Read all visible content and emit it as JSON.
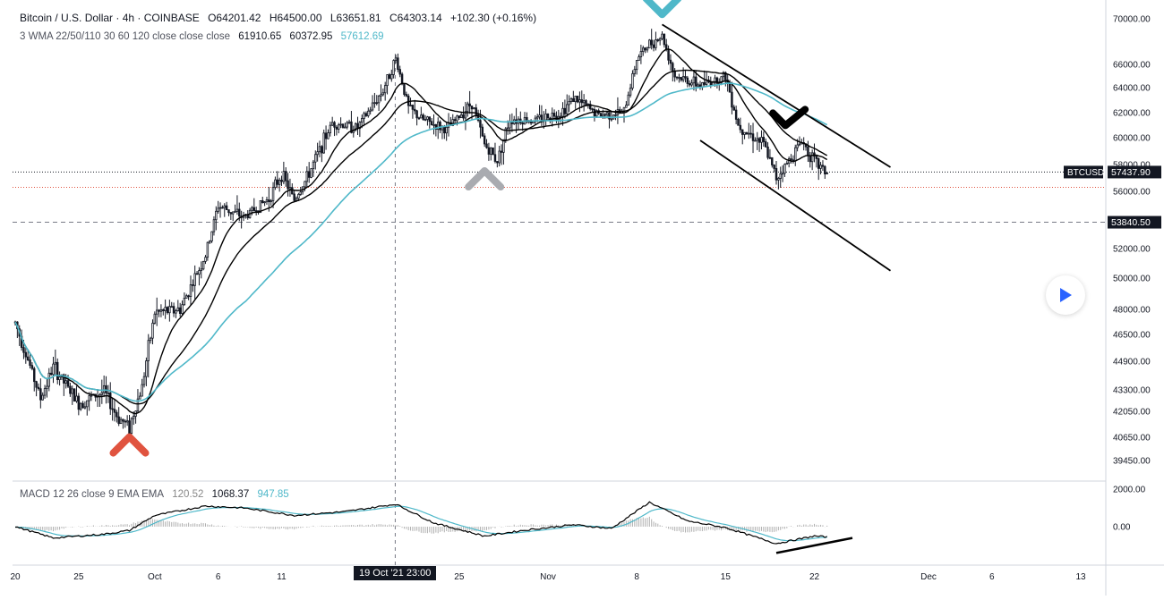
{
  "header": {
    "symbol_title": "Bitcoin / U.S. Dollar · 4h · COINBASE",
    "ohlc": {
      "o": "O64201.42",
      "h": "H64500.00",
      "l": "L63651.81",
      "c": "C64303.14",
      "change": "+102.30 (+0.16%)"
    }
  },
  "indicator_legend": {
    "label": "3 WMA 22/50/110 30 60 120 close close close",
    "v1": "61910.65",
    "v2": "60372.95",
    "v3": "57612.69"
  },
  "macd_legend": {
    "label": "MACD 12 26 close 9 EMA EMA",
    "v1": "120.52",
    "v2": "1068.37",
    "v3": "947.85"
  },
  "price_axis_labels": [
    "70000.00",
    "66000.00",
    "64000.00",
    "62000.00",
    "60000.00",
    "58000.00",
    "56000.00",
    "52000.00",
    "50000.00",
    "48000.00",
    "46500.00",
    "44900.00",
    "43300.00",
    "42050.00",
    "40650.00",
    "39450.00"
  ],
  "macd_axis_labels": [
    "2000.00",
    "0.00"
  ],
  "badges": {
    "symbol": "BTCUSD",
    "last_price": "57437.90",
    "crosshair_price": "53840.50",
    "crosshair_time": "19 Oct '21  23:00"
  },
  "time_axis_labels": [
    "20",
    "25",
    "Oct",
    "6",
    "11",
    "25",
    "Nov",
    "8",
    "15",
    "22",
    "Dec",
    "6",
    "13"
  ],
  "colors": {
    "up": "#131722",
    "down": "#131722",
    "wma_fast": "#000000",
    "wma_mid": "#000000",
    "wma_slow": "#4fb8c9",
    "macd_line": "#000000",
    "signal_line": "#4fb8c9",
    "hist": "#b0b0b0",
    "marker_red": "#e0533f",
    "marker_grey": "#a9abb0",
    "marker_teal": "#4fb8c9",
    "marker_black": "#000000",
    "grid": "#e6e8ee",
    "last_price_line": "#e0533f"
  },
  "chart_data": {
    "type": "candlestick",
    "symbol": "BTCUSD",
    "exchange": "COINBASE",
    "interval": "4h",
    "ylim": [
      39000,
      71000
    ],
    "x_range": [
      "2021-09-20",
      "2021-12-13"
    ],
    "price_path": [
      [
        "2021-09-20",
        47200
      ],
      [
        "2021-09-22",
        42800
      ],
      [
        "2021-09-23",
        44600
      ],
      [
        "2021-09-25",
        42500
      ],
      [
        "2021-09-27",
        43200
      ],
      [
        "2021-09-28",
        41800
      ],
      [
        "2021-09-29",
        41200
      ],
      [
        "2021-09-30",
        43500
      ],
      [
        "2021-10-01",
        47800
      ],
      [
        "2021-10-03",
        48000
      ],
      [
        "2021-10-05",
        51500
      ],
      [
        "2021-10-06",
        55000
      ],
      [
        "2021-10-08",
        54200
      ],
      [
        "2021-10-10",
        55500
      ],
      [
        "2021-10-11",
        57300
      ],
      [
        "2021-10-12",
        55400
      ],
      [
        "2021-10-13",
        57000
      ],
      [
        "2021-10-15",
        61200
      ],
      [
        "2021-10-17",
        60800
      ],
      [
        "2021-10-19",
        63800
      ],
      [
        "2021-10-20",
        66500
      ],
      [
        "2021-10-21",
        62400
      ],
      [
        "2021-10-22",
        61500
      ],
      [
        "2021-10-24",
        60600
      ],
      [
        "2021-10-26",
        62800
      ],
      [
        "2021-10-27",
        59500
      ],
      [
        "2021-10-28",
        58300
      ],
      [
        "2021-10-29",
        61500
      ],
      [
        "2021-10-31",
        61400
      ],
      [
        "2021-11-02",
        62000
      ],
      [
        "2021-11-03",
        63200
      ],
      [
        "2021-11-05",
        61800
      ],
      [
        "2021-11-07",
        62000
      ],
      [
        "2021-11-08",
        66500
      ],
      [
        "2021-11-09",
        67800
      ],
      [
        "2021-11-10",
        68500
      ],
      [
        "2021-11-11",
        65000
      ],
      [
        "2021-11-13",
        64200
      ],
      [
        "2021-11-15",
        65000
      ],
      [
        "2021-11-16",
        61000
      ],
      [
        "2021-11-18",
        59500
      ],
      [
        "2021-11-19",
        57000
      ],
      [
        "2021-11-20",
        58300
      ],
      [
        "2021-11-21",
        59800
      ],
      [
        "2021-11-22",
        58200
      ],
      [
        "2021-11-23",
        57400
      ]
    ],
    "wma_series": [
      {
        "name": "WMA 22",
        "color": "#000000",
        "period": 22
      },
      {
        "name": "WMA 50",
        "color": "#000000",
        "period": 50
      },
      {
        "name": "WMA 110",
        "color": "#4fb8c9",
        "period": 110
      }
    ],
    "horizontal_levels": [
      {
        "price": 57437.9,
        "style": "dotted",
        "label": "57437.90"
      },
      {
        "price": 56300,
        "style": "dotted"
      },
      {
        "price": 53840.5,
        "style": "dashed",
        "label": "53840.50"
      }
    ],
    "crosshair": {
      "x": "2021-10-19T23:00",
      "price": 53840.5
    },
    "trendlines": [
      {
        "from": [
          "2021-11-10",
          69500
        ],
        "to": [
          "2021-11-28",
          57800
        ]
      },
      {
        "from": [
          "2021-11-13",
          59800
        ],
        "to": [
          "2021-11-28",
          50500
        ]
      }
    ],
    "markers": [
      {
        "at": [
          "2021-09-29",
          40300
        ],
        "shape": "chevron-up",
        "color": "#e0533f"
      },
      {
        "at": [
          "2021-10-27",
          57000
        ],
        "shape": "chevron-up",
        "color": "#a9abb0"
      },
      {
        "at": [
          "2021-11-10",
          71000
        ],
        "shape": "chevron-down",
        "color": "#4fb8c9"
      },
      {
        "at": [
          "2021-11-20",
          61400
        ],
        "shape": "checkmark",
        "color": "#000000"
      }
    ],
    "macd": {
      "fast": 12,
      "slow": 26,
      "signal": 9,
      "ylim": [
        -1500,
        2500
      ],
      "path": [
        [
          "2021-09-20",
          0
        ],
        [
          "2021-09-23",
          -600
        ],
        [
          "2021-09-27",
          -400
        ],
        [
          "2021-09-29",
          -200
        ],
        [
          "2021-10-01",
          600
        ],
        [
          "2021-10-05",
          1100
        ],
        [
          "2021-10-08",
          1000
        ],
        [
          "2021-10-12",
          600
        ],
        [
          "2021-10-16",
          800
        ],
        [
          "2021-10-20",
          1200
        ],
        [
          "2021-10-23",
          200
        ],
        [
          "2021-10-27",
          -500
        ],
        [
          "2021-10-30",
          -200
        ],
        [
          "2021-11-03",
          100
        ],
        [
          "2021-11-06",
          -100
        ],
        [
          "2021-11-09",
          1300
        ],
        [
          "2021-11-12",
          300
        ],
        [
          "2021-11-15",
          -50
        ],
        [
          "2021-11-19",
          -900
        ],
        [
          "2021-11-22",
          -500
        ],
        [
          "2021-11-23",
          -550
        ]
      ],
      "divergence_line": {
        "from": [
          "2021-11-19",
          -1400
        ],
        "to": [
          "2021-11-25",
          -600
        ]
      }
    }
  }
}
